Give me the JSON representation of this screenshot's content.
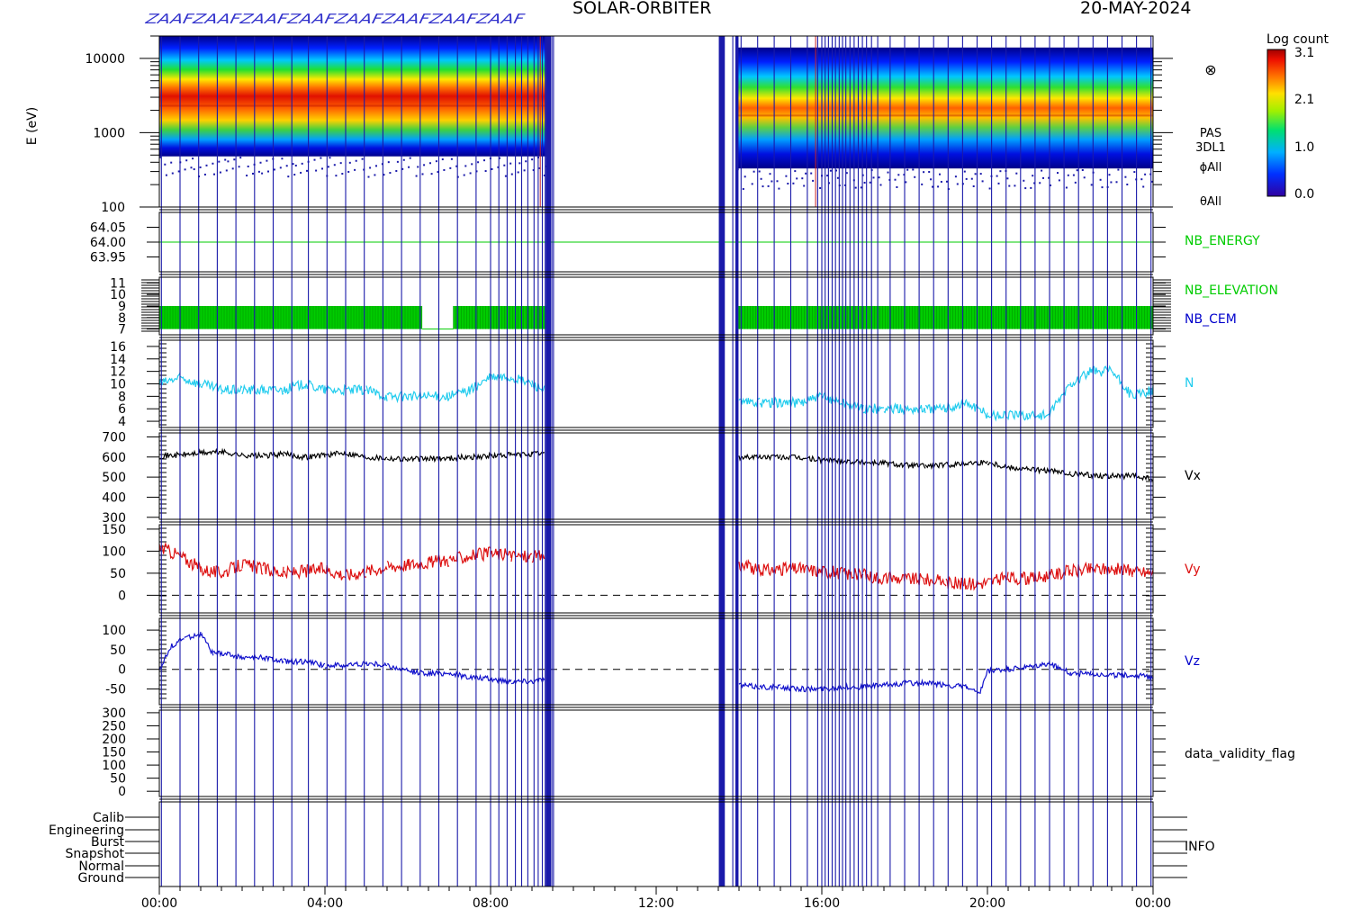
{
  "header": {
    "title": "SOLAR-ORBITER",
    "date": "20-MAY-2024",
    "mode_flag": "ZAAF"
  },
  "colorbar": {
    "label": "Log count",
    "ticks": [
      "3.1",
      "2.1",
      "1.0",
      "0.0"
    ]
  },
  "x_axis": {
    "ticks": [
      "00:00",
      "04:00",
      "08:00",
      "12:00",
      "16:00",
      "20:00",
      "00:00"
    ]
  },
  "chart_data": [
    {
      "type": "heatmap",
      "panel": "spectrogram",
      "ylabel": "E (eV)",
      "ylog": true,
      "ylim": [
        100,
        20000
      ],
      "yticks": [
        "10000",
        "1000",
        "100"
      ],
      "side_labels": [
        "PAS",
        "3DL1",
        "ϕAll",
        "θAll"
      ],
      "coverage": [
        {
          "from": 0.0,
          "to": 9.35
        },
        {
          "from": 13.95,
          "to": 24.0
        }
      ],
      "peak_energy_eV": [
        {
          "from": 0.0,
          "to": 9.35,
          "value": 2300
        },
        {
          "from": 13.95,
          "to": 24.0,
          "value": 1700
        }
      ]
    },
    {
      "type": "line",
      "panel": "nb_energy",
      "yticks": [
        "64.05",
        "64.00",
        "63.95"
      ],
      "ylim": [
        63.9,
        64.1
      ],
      "series": [
        {
          "name": "NB_ENERGY",
          "color": "#00cc00",
          "values": [
            64.0
          ]
        }
      ]
    },
    {
      "type": "area",
      "panel": "nb_elevation",
      "yticks": [
        "11",
        "10",
        "9",
        "8",
        "7"
      ],
      "ylim": [
        6.5,
        11.5
      ],
      "band": [
        7,
        9
      ],
      "band_segments": [
        [
          0.0,
          6.35
        ],
        [
          7.1,
          9.35
        ],
        [
          13.95,
          24.0
        ]
      ],
      "series": [
        {
          "name": "NB_ELEVATION",
          "color": "#00cc00"
        },
        {
          "name": "NB_CEM",
          "color": "#0000cc"
        }
      ]
    },
    {
      "type": "line",
      "panel": "density",
      "yticks": [
        "16",
        "14",
        "12",
        "10",
        "8",
        "6",
        "4"
      ],
      "ylim": [
        3,
        17
      ],
      "series": [
        {
          "name": "N",
          "color": "#22ccee",
          "x": [
            0,
            0.5,
            1,
            1.5,
            2,
            2.5,
            3,
            3.5,
            4,
            4.5,
            5,
            5.5,
            6,
            6.5,
            7,
            7.5,
            8,
            8.5,
            9,
            9.3,
            14,
            14.5,
            15,
            15.5,
            16,
            16.5,
            17,
            17.5,
            18,
            18.5,
            19,
            19.5,
            20,
            20.5,
            21,
            21.5,
            22,
            22.5,
            23,
            23.5,
            24
          ],
          "y": [
            10,
            11,
            10,
            9,
            9,
            9,
            9,
            10,
            9,
            9,
            9,
            8,
            8,
            8,
            8,
            9,
            11,
            11,
            10,
            9,
            7,
            7,
            7,
            7,
            8,
            7,
            6,
            6,
            6,
            6,
            6,
            7,
            5,
            5,
            5,
            5,
            10,
            12,
            12,
            8,
            9
          ]
        }
      ]
    },
    {
      "type": "line",
      "panel": "vx",
      "yticks": [
        "700",
        "600",
        "500",
        "400",
        "300"
      ],
      "ylim": [
        290,
        720
      ],
      "series": [
        {
          "name": "Vx",
          "color": "#000000",
          "x": [
            0,
            0.5,
            1,
            1.5,
            2,
            2.5,
            3,
            3.5,
            4,
            4.5,
            5,
            5.5,
            6,
            6.5,
            7,
            7.5,
            8,
            8.5,
            9,
            9.3,
            14,
            14.5,
            15,
            15.5,
            16,
            16.5,
            17,
            17.5,
            18,
            18.5,
            19,
            19.5,
            20,
            20.5,
            21,
            21.5,
            22,
            22.5,
            23,
            23.5,
            24
          ],
          "y": [
            605,
            610,
            620,
            625,
            610,
            605,
            615,
            600,
            610,
            620,
            600,
            595,
            590,
            590,
            595,
            600,
            605,
            610,
            615,
            620,
            600,
            600,
            600,
            595,
            585,
            580,
            575,
            570,
            560,
            555,
            560,
            570,
            575,
            550,
            540,
            530,
            515,
            510,
            505,
            505,
            490
          ]
        }
      ]
    },
    {
      "type": "line",
      "panel": "vy",
      "yticks": [
        "150",
        "100",
        "50",
        "0"
      ],
      "ylim": [
        -40,
        160
      ],
      "series": [
        {
          "name": "Vy",
          "color": "#dd1111",
          "x": [
            0,
            0.5,
            1,
            1.5,
            2,
            2.5,
            3,
            3.5,
            4,
            4.5,
            5,
            5.5,
            6,
            6.5,
            7,
            7.5,
            8,
            8.5,
            9,
            9.3,
            14,
            14.5,
            15,
            15.5,
            16,
            16.5,
            17,
            17.5,
            18,
            18.5,
            19,
            19.5,
            20,
            20.5,
            21,
            21.5,
            22,
            22.5,
            23,
            23.5,
            24
          ],
          "y": [
            110,
            90,
            60,
            50,
            70,
            60,
            50,
            55,
            60,
            45,
            55,
            65,
            70,
            75,
            80,
            90,
            95,
            90,
            88,
            88,
            70,
            55,
            60,
            60,
            55,
            50,
            45,
            40,
            38,
            36,
            30,
            25,
            30,
            40,
            38,
            45,
            55,
            60,
            60,
            55,
            50
          ]
        }
      ]
    },
    {
      "type": "line",
      "panel": "vz",
      "yticks": [
        "100",
        "50",
        "0",
        "-50"
      ],
      "ylim": [
        -90,
        130
      ],
      "series": [
        {
          "name": "Vz",
          "color": "#1111cc",
          "x": [
            0,
            0.3,
            0.6,
            1,
            1.3,
            1.6,
            2,
            2.5,
            3,
            3.5,
            4,
            4.5,
            5,
            5.5,
            6,
            6.5,
            7,
            7.5,
            8,
            8.5,
            9,
            9.3,
            14,
            14.5,
            15,
            15.5,
            16,
            16.5,
            17,
            17.5,
            18,
            18.5,
            19,
            19.5,
            19.8,
            20,
            20.5,
            21,
            21.5,
            22,
            22.5,
            23,
            23.5,
            24
          ],
          "y": [
            0,
            60,
            80,
            90,
            40,
            40,
            30,
            30,
            20,
            20,
            10,
            10,
            15,
            10,
            -5,
            -10,
            -10,
            -20,
            -25,
            -30,
            -30,
            -25,
            -40,
            -45,
            -45,
            -50,
            -50,
            -45,
            -45,
            -40,
            -35,
            -35,
            -40,
            -45,
            -65,
            -5,
            0,
            5,
            15,
            -10,
            -10,
            -15,
            -15,
            -20
          ]
        }
      ]
    },
    {
      "type": "line",
      "panel": "data_validity_flag",
      "yticks": [
        "300",
        "250",
        "200",
        "150",
        "100",
        "50",
        "0"
      ],
      "ylim": [
        -20,
        310
      ],
      "series": [
        {
          "name": "data_validity_flag",
          "values": []
        }
      ]
    },
    {
      "type": "line",
      "panel": "info",
      "yticks": [
        "Calib",
        "Engineering",
        "Burst",
        "Snapshot",
        "Normal",
        "Ground"
      ],
      "series": [
        {
          "name": "INFO",
          "values": []
        }
      ]
    }
  ],
  "markers": {
    "color": "#1a1aaa",
    "red_color": "#cc2222",
    "red_hours": [
      9.2,
      15.85
    ],
    "hours": [
      0.05,
      0.5,
      0.95,
      1.4,
      1.85,
      2.3,
      2.75,
      3.2,
      3.6,
      4.05,
      4.5,
      4.95,
      5.4,
      5.85,
      6.3,
      6.75,
      7.2,
      7.65,
      8.0,
      8.2,
      8.4,
      8.6,
      8.75,
      8.9,
      9.05,
      9.15,
      9.25,
      9.32,
      9.37,
      9.42,
      9.48,
      9.52,
      13.55,
      13.62,
      13.85,
      13.95,
      14.05,
      14.45,
      14.85,
      15.25,
      15.65,
      15.9,
      16.0,
      16.08,
      16.16,
      16.25,
      16.33,
      16.42,
      16.5,
      16.58,
      16.68,
      16.78,
      16.88,
      16.98,
      17.08,
      17.2,
      17.35,
      17.65,
      18.0,
      18.35,
      18.7,
      19.05,
      19.4,
      19.75,
      20.1,
      20.45,
      20.8,
      21.15,
      21.5,
      21.85,
      22.2,
      22.55,
      22.9,
      23.25,
      23.6,
      23.95
    ],
    "thick_hours": [
      3.4,
      9.4,
      13.6,
      13.95
    ]
  },
  "colors": {
    "axis": "#000000",
    "label_blue": "#0000cc",
    "label_green": "#00cc00",
    "label_cyan": "#22ccee",
    "label_red": "#dd1111"
  }
}
